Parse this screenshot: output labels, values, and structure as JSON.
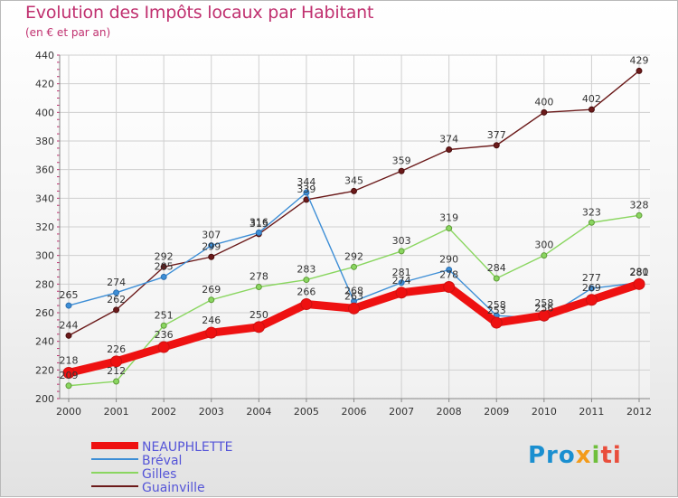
{
  "header": {
    "title": "Evolution des Impôts locaux par Habitant",
    "subtitle": "(en € et par an)"
  },
  "logo": {
    "text": "Proxiti",
    "part1": "Pro",
    "part2": "x",
    "part3": "i",
    "part4": "ti"
  },
  "colors": {
    "title": "#c0306f",
    "legend_text": "#5555d8",
    "grid": "#cfcfcf",
    "axis_ticks": "#c0306f"
  },
  "chart_data": {
    "type": "line",
    "title": "Evolution des Impôts locaux par Habitant",
    "subtitle": "(en € et par an)",
    "x": [
      "2000",
      "2001",
      "2002",
      "2003",
      "2004",
      "2005",
      "2006",
      "2007",
      "2008",
      "2009",
      "2010",
      "2011",
      "2012"
    ],
    "ylim": [
      200,
      440
    ],
    "yticks": [
      200,
      220,
      240,
      260,
      280,
      300,
      320,
      340,
      360,
      380,
      400,
      420,
      440
    ],
    "grid": true,
    "legend_position": "bottom-left",
    "series": [
      {
        "name": "NEAUPHLETTE",
        "color": "#ee1111",
        "values": [
          218,
          226,
          236,
          246,
          250,
          266,
          263,
          274,
          278,
          253,
          258,
          269,
          280
        ]
      },
      {
        "name": "Bréval",
        "color": "#3d8ed6",
        "values": [
          265,
          274,
          285,
          307,
          316,
          344,
          268,
          281,
          290,
          258,
          256,
          277,
          281
        ]
      },
      {
        "name": "Gilles",
        "color": "#8ad660",
        "values": [
          209,
          212,
          251,
          269,
          278,
          283,
          292,
          303,
          319,
          284,
          300,
          323,
          328
        ]
      },
      {
        "name": "Guainville",
        "color": "#6b1a1a",
        "values": [
          244,
          262,
          292,
          299,
          315,
          339,
          345,
          359,
          374,
          377,
          400,
          402,
          429
        ]
      }
    ]
  }
}
